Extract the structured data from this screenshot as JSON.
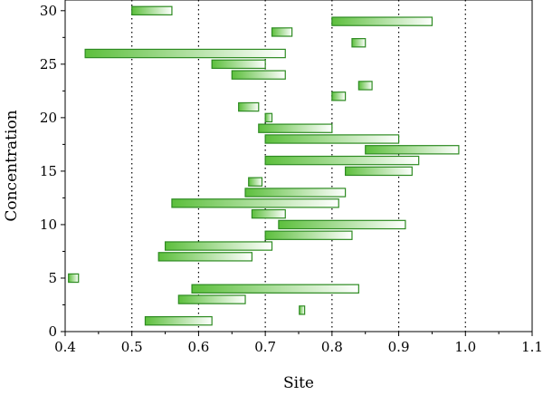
{
  "chart_data": {
    "type": "floating-bar",
    "xlabel": "Site",
    "ylabel": "Concentration",
    "xlim": [
      0.4,
      1.1
    ],
    "ylim": [
      0,
      31
    ],
    "xticks": [
      "0.4",
      "0.5",
      "0.6",
      "0.7",
      "0.8",
      "0.9",
      "1.0",
      "1.1"
    ],
    "yticks": [
      "0",
      "5",
      "10",
      "15",
      "20",
      "25",
      "30"
    ],
    "vlines": [
      0.5,
      0.6,
      0.7,
      0.8,
      0.9,
      1.0
    ],
    "colors": {
      "bar_edge": "#2e8b22",
      "bar_fill_start": "#5cbf3c",
      "bar_fill_end": "#ffffff"
    },
    "bars": [
      {
        "y": 1,
        "x_start": 0.52,
        "x_end": 0.62
      },
      {
        "y": 2,
        "x_start": 0.751,
        "x_end": 0.759
      },
      {
        "y": 3,
        "x_start": 0.57,
        "x_end": 0.67
      },
      {
        "y": 4,
        "x_start": 0.59,
        "x_end": 0.84
      },
      {
        "y": 5,
        "x_start": 0.405,
        "x_end": 0.42
      },
      {
        "y": 7,
        "x_start": 0.54,
        "x_end": 0.68
      },
      {
        "y": 8,
        "x_start": 0.55,
        "x_end": 0.71
      },
      {
        "y": 9,
        "x_start": 0.7,
        "x_end": 0.83
      },
      {
        "y": 10,
        "x_start": 0.72,
        "x_end": 0.91
      },
      {
        "y": 11,
        "x_start": 0.68,
        "x_end": 0.73
      },
      {
        "y": 12,
        "x_start": 0.56,
        "x_end": 0.81
      },
      {
        "y": 13,
        "x_start": 0.67,
        "x_end": 0.82
      },
      {
        "y": 14,
        "x_start": 0.675,
        "x_end": 0.695
      },
      {
        "y": 15,
        "x_start": 0.82,
        "x_end": 0.92
      },
      {
        "y": 16,
        "x_start": 0.7,
        "x_end": 0.93
      },
      {
        "y": 17,
        "x_start": 0.85,
        "x_end": 0.99
      },
      {
        "y": 18,
        "x_start": 0.7,
        "x_end": 0.9
      },
      {
        "y": 19,
        "x_start": 0.69,
        "x_end": 0.8
      },
      {
        "y": 20,
        "x_start": 0.7,
        "x_end": 0.71
      },
      {
        "y": 21,
        "x_start": 0.66,
        "x_end": 0.69
      },
      {
        "y": 22,
        "x_start": 0.8,
        "x_end": 0.82
      },
      {
        "y": 23,
        "x_start": 0.84,
        "x_end": 0.86
      },
      {
        "y": 24,
        "x_start": 0.65,
        "x_end": 0.73
      },
      {
        "y": 25,
        "x_start": 0.62,
        "x_end": 0.7
      },
      {
        "y": 26,
        "x_start": 0.43,
        "x_end": 0.73
      },
      {
        "y": 27,
        "x_start": 0.83,
        "x_end": 0.85
      },
      {
        "y": 28,
        "x_start": 0.71,
        "x_end": 0.74
      },
      {
        "y": 29,
        "x_start": 0.8,
        "x_end": 0.95
      },
      {
        "y": 30,
        "x_start": 0.5,
        "x_end": 0.56
      }
    ]
  }
}
